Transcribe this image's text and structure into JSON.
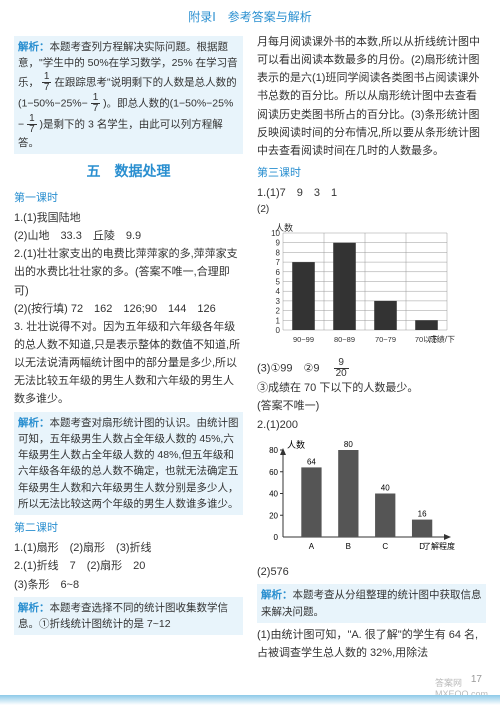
{
  "header": "附录Ⅰ　参考答案与解析",
  "left": {
    "explain1_a": "本题考查列方程解决实际问题。根据题意，\"学生中的 50%在学习数学，25% 在学习音乐，",
    "frac1_n": "1",
    "frac1_d": "7",
    "explain1_b": "在跟踪思考\"说明剩下的人数是总人数的(1−50%−25%−",
    "explain1_c": ")。即总人数的(1−50%−25%−",
    "explain1_d": ")是剩下的 3 名学生，由此可以列方程解答。",
    "section5": "五　数据处理",
    "lesson1": "第一课时",
    "l1_q1": "1.(1)我国陆地",
    "l1_q1b": "(2)山地　33.3　丘陵　9.9",
    "l1_q2a": "2.(1)壮壮家支出的电费比萍萍家的多,萍萍家支出的水费比壮壮家的多。(答案不唯一,合理即可)",
    "l1_q2b": "(2)(按行填) 72　162　126;90　144　126",
    "l1_q3": "3. 壮壮说得不对。因为五年级和六年级各年级的总人数不知道,只是表示整体的数值不知道,所以无法说清两幅统计图中的部分量是多少,所以无法比较五年级的男生人数和六年级的男生人数多谁少。",
    "explain2_label": "解析：",
    "explain2": "本题考查对扇形统计图的认识。由统计图可知，五年级男生人数占全年级人数的 45%,六年级男生人数占全年级人数的 48%,但五年级和六年级各年级的总人数不确定，也就无法确定五年级男生人数和六年级男生人数分别是多少人，所以无法比较这两个年级的男生人数谁多谁少。",
    "lesson2": "第二课时",
    "l2_q1": "1.(1)扇形　(2)扇形　(3)折线",
    "l2_q2": "2.(1)折线　7　(2)扇形　20",
    "l2_q2b": "(3)条形　6~8",
    "explain3_label": "解析：",
    "explain3": "本题考查选择不同的统计图收集数学信息。①折线统计图统计的是 7~12"
  },
  "right": {
    "p1": "月每月阅读课外书的本数,所以从折线统计图中可以看出阅读本数最多的月份。(2)扇形统计图表示的是六(1)班同学阅读各类图书占阅读课外书总数的百分比。所以从扇形统计图中去查看阅读历史类图书所占的百分比。(3)条形统计图反映阅读时间的分布情况,所以要从条形统计图中去查看阅读时间在几时的人数最多。",
    "lesson3": "第三课时",
    "l3_q1": "1.(1)7　9　3　1",
    "chart1": {
      "ylabel": "人数",
      "ymax": 10,
      "ytick": 1,
      "bars": [
        {
          "label": "90~99",
          "value": 7
        },
        {
          "label": "80~89",
          "value": 9
        },
        {
          "label": "70~79",
          "value": 3
        },
        {
          "label": "70以下",
          "value": 1
        }
      ],
      "xlabel_unit": "成绩/下",
      "bar_color": "#333333",
      "grid_color": "#999"
    },
    "l3_q3": "(3)①99　②9　",
    "frac2_n": "9",
    "frac2_d": "20",
    "l3_q3b": "③成绩在 70 下以下的人数最少。",
    "l3_q3c": "(答案不唯一)",
    "l3_q2": "2.(1)200",
    "chart2": {
      "ylabel": "人数",
      "ymax": 80,
      "ytick": 20,
      "bars": [
        {
          "label": "A",
          "value": 64
        },
        {
          "label": "B",
          "value": 80
        },
        {
          "label": "C",
          "value": 40
        },
        {
          "label": "D",
          "value": 16
        }
      ],
      "xlabel_unit": "了解程度",
      "bar_color": "#555555"
    },
    "l3_q2b": "(2)576",
    "explain4_label": "解析：",
    "explain4": "本题考查从分组整理的统计图中获取信息来解决问题。",
    "explain4b": "(1)由统计图可知，\"A. 很了解\"的学生有 64 名,占被调查学生总人数的 32%,用除法"
  },
  "footer": {
    "page": "17",
    "wm1": "答案网",
    "wm2": "MXEQQ.com"
  }
}
